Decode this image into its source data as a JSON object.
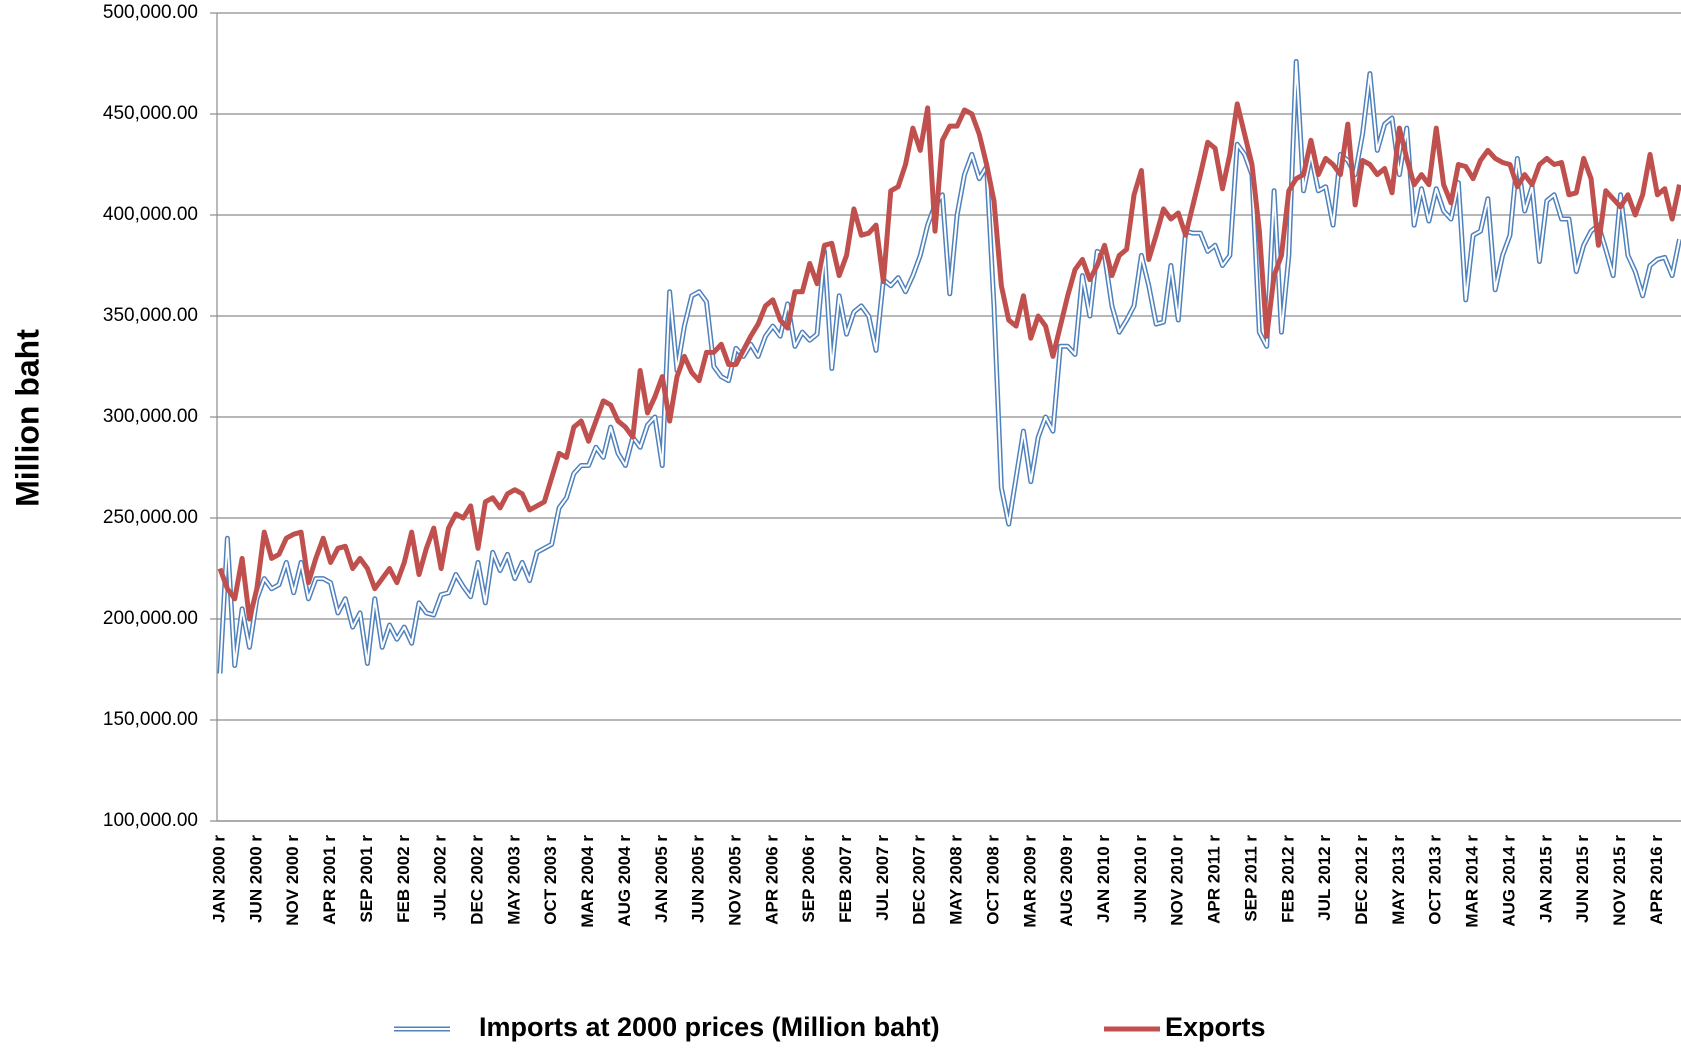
{
  "chart_data": {
    "type": "line",
    "ylabel": "Million baht",
    "ylim": [
      100000,
      500000
    ],
    "yticks": [
      {
        "value": 100000,
        "label": "100,000.00"
      },
      {
        "value": 150000,
        "label": "150,000.00"
      },
      {
        "value": 200000,
        "label": "200,000.00"
      },
      {
        "value": 250000,
        "label": "250,000.00"
      },
      {
        "value": 300000,
        "label": "300,000.00"
      },
      {
        "value": 350000,
        "label": "350,000.00"
      },
      {
        "value": 400000,
        "label": "400,000.00"
      },
      {
        "value": 450000,
        "label": "450,000.00"
      },
      {
        "value": 500000,
        "label": "500,000.00"
      }
    ],
    "grid": true,
    "legend": "bottom",
    "categories": [
      "JAN 2000 r",
      null,
      null,
      null,
      null,
      "JUN 2000 r",
      null,
      null,
      null,
      null,
      "NOV 2000 r",
      null,
      null,
      null,
      null,
      "APR 2001 r",
      null,
      null,
      null,
      null,
      "SEP 2001 r",
      null,
      null,
      null,
      null,
      "FEB 2002 r",
      null,
      null,
      null,
      null,
      "JUL 2002 r",
      null,
      null,
      null,
      null,
      "DEC 2002 r",
      null,
      null,
      null,
      null,
      "MAY 2003 r",
      null,
      null,
      null,
      null,
      "OCT 2003 r",
      null,
      null,
      null,
      null,
      "MAR 2004 r",
      null,
      null,
      null,
      null,
      "AUG 2004 r",
      null,
      null,
      null,
      null,
      "JAN 2005 r",
      null,
      null,
      null,
      null,
      "JUN 2005 r",
      null,
      null,
      null,
      null,
      "NOV 2005 r",
      null,
      null,
      null,
      null,
      "APR 2006 r",
      null,
      null,
      null,
      null,
      "SEP 2006 r",
      null,
      null,
      null,
      null,
      "FEB 2007 r",
      null,
      null,
      null,
      null,
      "JUL 2007 r",
      null,
      null,
      null,
      null,
      "DEC 2007 r",
      null,
      null,
      null,
      null,
      "MAY 2008 r",
      null,
      null,
      null,
      null,
      "OCT 2008 r",
      null,
      null,
      null,
      null,
      "MAR 2009 r",
      null,
      null,
      null,
      null,
      "AUG 2009 r",
      null,
      null,
      null,
      null,
      "JAN 2010 r",
      null,
      null,
      null,
      null,
      "JUN 2010 r",
      null,
      null,
      null,
      null,
      "NOV 2010 r",
      null,
      null,
      null,
      null,
      "APR 2011 r",
      null,
      null,
      null,
      null,
      "SEP 2011 r",
      null,
      null,
      null,
      null,
      "FEB 2012 r",
      null,
      null,
      null,
      null,
      "JUL 2012 r",
      null,
      null,
      null,
      null,
      "DEC 2012 r",
      null,
      null,
      null,
      null,
      "MAY 2013 r",
      null,
      null,
      null,
      null,
      "OCT 2013 r",
      null,
      null,
      null,
      null,
      "MAR 2014 r",
      null,
      null,
      null,
      null,
      "AUG 2014 r",
      null,
      null,
      null,
      null,
      "JAN 2015 r",
      null,
      null,
      null,
      null,
      "JUN 2015 r",
      null,
      null,
      null,
      null,
      "NOV 2015 r",
      null,
      null,
      null,
      null,
      "APR 2016 r",
      null,
      null,
      null
    ],
    "series": [
      {
        "name": "Imports at 2000 prices (Million baht)",
        "color": "#4f81bd",
        "style": "double",
        "values": [
          173000,
          240000,
          177000,
          205000,
          186000,
          210000,
          220000,
          215000,
          217000,
          228000,
          213000,
          228000,
          210000,
          220000,
          220000,
          218000,
          203000,
          210000,
          196000,
          203000,
          178000,
          210000,
          186000,
          197000,
          190000,
          196000,
          188000,
          208000,
          203000,
          202000,
          212000,
          213000,
          222000,
          216000,
          211000,
          228000,
          208000,
          233000,
          224000,
          232000,
          220000,
          228000,
          219000,
          233000,
          235000,
          237000,
          255000,
          260000,
          272000,
          276000,
          276000,
          285000,
          280000,
          295000,
          282000,
          276000,
          290000,
          285000,
          296000,
          300000,
          276000,
          362000,
          323000,
          345000,
          360000,
          362000,
          357000,
          325000,
          320000,
          318000,
          334000,
          330000,
          336000,
          330000,
          340000,
          345000,
          340000,
          356000,
          335000,
          342000,
          338000,
          341000,
          382000,
          324000,
          360000,
          341000,
          352000,
          355000,
          350000,
          333000,
          368000,
          365000,
          369000,
          362000,
          370000,
          380000,
          395000,
          405000,
          410000,
          361000,
          400000,
          420000,
          430000,
          418000,
          424000,
          355000,
          265000,
          247000,
          270000,
          293000,
          268000,
          290000,
          300000,
          293000,
          335000,
          335000,
          331000,
          370000,
          350000,
          382000,
          380000,
          355000,
          342000,
          348000,
          355000,
          380000,
          365000,
          346000,
          347000,
          375000,
          348000,
          392000,
          391000,
          391000,
          382000,
          385000,
          375000,
          380000,
          435000,
          430000,
          420000,
          342000,
          335000,
          412000,
          342000,
          380000,
          476000,
          412000,
          430000,
          412000,
          414000,
          395000,
          430000,
          427000,
          420000,
          440000,
          470000,
          432000,
          445000,
          448000,
          420000,
          443000,
          395000,
          413000,
          397000,
          413000,
          402000,
          398000,
          416000,
          358000,
          390000,
          392000,
          408000,
          363000,
          380000,
          390000,
          428000,
          402000,
          414000,
          377000,
          407000,
          410000,
          398000,
          398000,
          372000,
          385000,
          392000,
          395000,
          383000,
          370000,
          410000,
          380000,
          372000,
          360000,
          375000,
          378000,
          379000,
          370000,
          388000
        ]
      },
      {
        "name": "Exports",
        "color": "#c0504d",
        "style": "solid",
        "values": [
          225000,
          215000,
          210000,
          230000,
          200000,
          215000,
          243000,
          230000,
          232000,
          240000,
          242000,
          243000,
          218000,
          230000,
          240000,
          228000,
          235000,
          236000,
          225000,
          230000,
          225000,
          215000,
          220000,
          225000,
          218000,
          228000,
          243000,
          222000,
          235000,
          245000,
          225000,
          245000,
          252000,
          250000,
          256000,
          235000,
          258000,
          260000,
          255000,
          262000,
          264000,
          262000,
          254000,
          256000,
          258000,
          270000,
          282000,
          280000,
          295000,
          298000,
          288000,
          298000,
          308000,
          306000,
          298000,
          295000,
          290000,
          323000,
          302000,
          310000,
          320000,
          298000,
          320000,
          330000,
          322000,
          318000,
          332000,
          332000,
          336000,
          326000,
          326000,
          333000,
          340000,
          346000,
          355000,
          358000,
          348000,
          344000,
          362000,
          362000,
          376000,
          366000,
          385000,
          386000,
          370000,
          380000,
          403000,
          390000,
          391000,
          395000,
          367000,
          412000,
          414000,
          425000,
          443000,
          432000,
          453000,
          392000,
          437000,
          444000,
          444000,
          452000,
          450000,
          440000,
          425000,
          407000,
          365000,
          348000,
          345000,
          360000,
          339000,
          350000,
          345000,
          330000,
          345000,
          360000,
          373000,
          378000,
          368000,
          375000,
          385000,
          370000,
          380000,
          383000,
          410000,
          422000,
          378000,
          390000,
          403000,
          398000,
          401000,
          390000,
          405000,
          420000,
          436000,
          433000,
          413000,
          430000,
          455000,
          440000,
          425000,
          392000,
          340000,
          370000,
          380000,
          412000,
          418000,
          420000,
          437000,
          420000,
          428000,
          425000,
          420000,
          445000,
          405000,
          427000,
          425000,
          420000,
          423000,
          411000,
          443000,
          428000,
          415000,
          420000,
          415000,
          443000,
          415000,
          406000,
          425000,
          424000,
          418000,
          427000,
          432000,
          428000,
          426000,
          425000,
          414000,
          420000,
          415000,
          425000,
          428000,
          425000,
          426000,
          410000,
          411000,
          428000,
          418000,
          385000,
          412000,
          408000,
          404000,
          410000,
          400000,
          410000,
          430000,
          410000,
          413000,
          398000,
          415000
        ]
      }
    ]
  }
}
